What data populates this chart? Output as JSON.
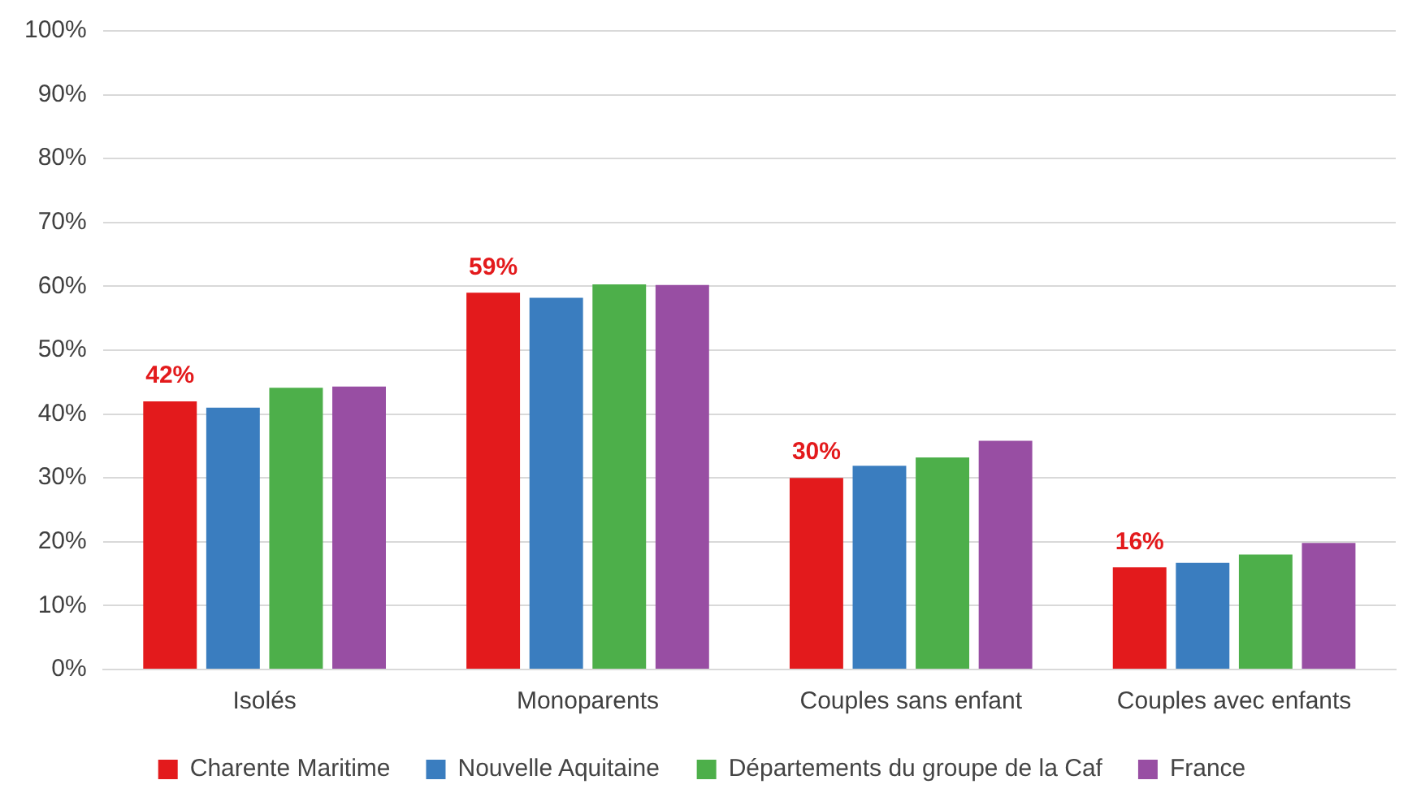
{
  "chart_data": {
    "type": "bar",
    "categories": [
      "Isolés",
      "Monoparents",
      "Couples sans enfant",
      "Couples avec enfants"
    ],
    "series": [
      {
        "name": "Charente Maritime",
        "color": "#e31a1c",
        "values": [
          42,
          59,
          30,
          16
        ],
        "value_labels": [
          "42%",
          "59%",
          "30%",
          "16%"
        ]
      },
      {
        "name": "Nouvelle Aquitaine",
        "color": "#3a7dbf",
        "values": [
          41,
          58.2,
          31.9,
          16.7
        ]
      },
      {
        "name": "Départements du groupe de la Caf",
        "color": "#4daf4a",
        "values": [
          44.1,
          60.3,
          33.2,
          18
        ]
      },
      {
        "name": "France",
        "color": "#984ea3",
        "values": [
          44.3,
          60.2,
          35.8,
          19.8
        ]
      }
    ],
    "ylim": [
      0,
      100
    ],
    "yticks": [
      {
        "value": 0,
        "label": "0%"
      },
      {
        "value": 10,
        "label": "10%"
      },
      {
        "value": 20,
        "label": "20%"
      },
      {
        "value": 30,
        "label": "30%"
      },
      {
        "value": 40,
        "label": "40%"
      },
      {
        "value": 50,
        "label": "50%"
      },
      {
        "value": 60,
        "label": "60%"
      },
      {
        "value": 70,
        "label": "70%"
      },
      {
        "value": 80,
        "label": "80%"
      },
      {
        "value": 90,
        "label": "90%"
      },
      {
        "value": 100,
        "label": "100%"
      }
    ],
    "grid": "y",
    "legend": "bottom"
  }
}
